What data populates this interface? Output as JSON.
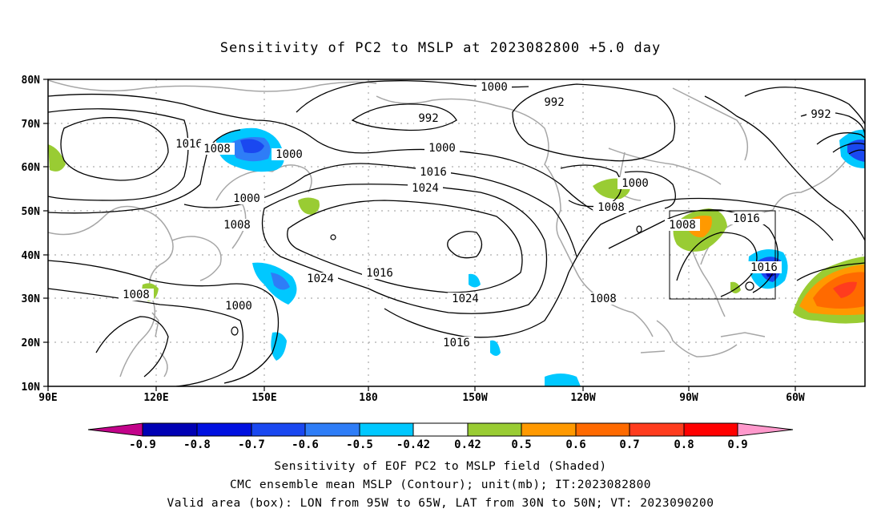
{
  "title": "Sensitivity of PC2 to MSLP at 2023082800 +5.0 day",
  "lat_labels": [
    "80N",
    "70N",
    "60N",
    "50N",
    "40N",
    "30N",
    "20N",
    "10N"
  ],
  "lon_labels": [
    "90E",
    "120E",
    "150E",
    "180",
    "150W",
    "120W",
    "90W",
    "60W"
  ],
  "contour_labels": [
    {
      "text": "1000"
    },
    {
      "text": "992"
    },
    {
      "text": "992"
    },
    {
      "text": "992"
    },
    {
      "text": "1016"
    },
    {
      "text": "1008"
    },
    {
      "text": "1000"
    },
    {
      "text": "1000"
    },
    {
      "text": "1016"
    },
    {
      "text": "1024"
    },
    {
      "text": "1000"
    },
    {
      "text": "1008"
    },
    {
      "text": "1000"
    },
    {
      "text": "1008"
    },
    {
      "text": "1024"
    },
    {
      "text": "1016"
    },
    {
      "text": "1008"
    },
    {
      "text": "1016"
    },
    {
      "text": "1016"
    },
    {
      "text": "1008"
    },
    {
      "text": "1000"
    },
    {
      "text": "1024"
    },
    {
      "text": "1008"
    },
    {
      "text": "1016"
    }
  ],
  "colorbar": {
    "labels": [
      "-0.9",
      "-0.8",
      "-0.7",
      "-0.6",
      "-0.5",
      "-0.42",
      "0.42",
      "0.5",
      "0.6",
      "0.7",
      "0.8",
      "0.9"
    ],
    "colors": {
      "below": "#c2038a",
      "neg": [
        "#0000b4",
        "#0010e0",
        "#1a48f0",
        "#2e7df7",
        "#00c8ff"
      ],
      "neutral": "#ffffff",
      "pos": [
        "#99cc33",
        "#ff9900",
        "#ff6a00",
        "#ff3c1e",
        "#ff0000"
      ],
      "above": "#ff99cc"
    }
  },
  "caption": {
    "line1": "Sensitivity of EOF PC2 to MSLP field (Shaded)",
    "line2": "CMC ensemble mean MSLP (Contour); unit(mb); IT:2023082800",
    "line3": "Valid area (box): LON from 95W to 65W, LAT from 30N to 50N; VT: 2023090200"
  }
}
